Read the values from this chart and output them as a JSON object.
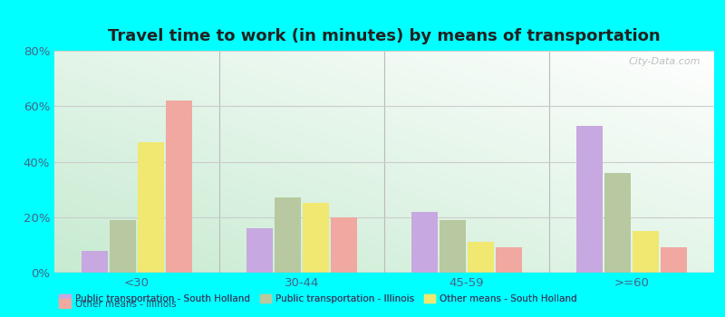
{
  "title": "Travel time to work (in minutes) by means of transportation",
  "categories": [
    "<30",
    "30-44",
    "45-59",
    ">=60"
  ],
  "series": {
    "Public transportation - South Holland": [
      8,
      16,
      22,
      53
    ],
    "Public transportation - Illinois": [
      19,
      27,
      19,
      36
    ],
    "Other means - South Holland": [
      47,
      25,
      11,
      15
    ],
    "Other means - Illinois": [
      62,
      20,
      9,
      9
    ]
  },
  "colors": {
    "Public transportation - South Holland": "#c8a8e0",
    "Public transportation - Illinois": "#b8c8a0",
    "Other means - South Holland": "#f0e870",
    "Other means - Illinois": "#f0a8a0"
  },
  "ylim": [
    0,
    80
  ],
  "yticks": [
    0,
    20,
    40,
    60,
    80
  ],
  "ytick_labels": [
    "0%",
    "20%",
    "40%",
    "60%",
    "80%"
  ],
  "background_color": "#00ffff",
  "title_color": "#222222",
  "title_fontsize": 13,
  "bar_width": 0.17,
  "watermark": "City-Data.com",
  "legend_order": [
    "Public transportation - South Holland",
    "Public transportation - Illinois",
    "Other means - South Holland",
    "Other means - Illinois"
  ]
}
